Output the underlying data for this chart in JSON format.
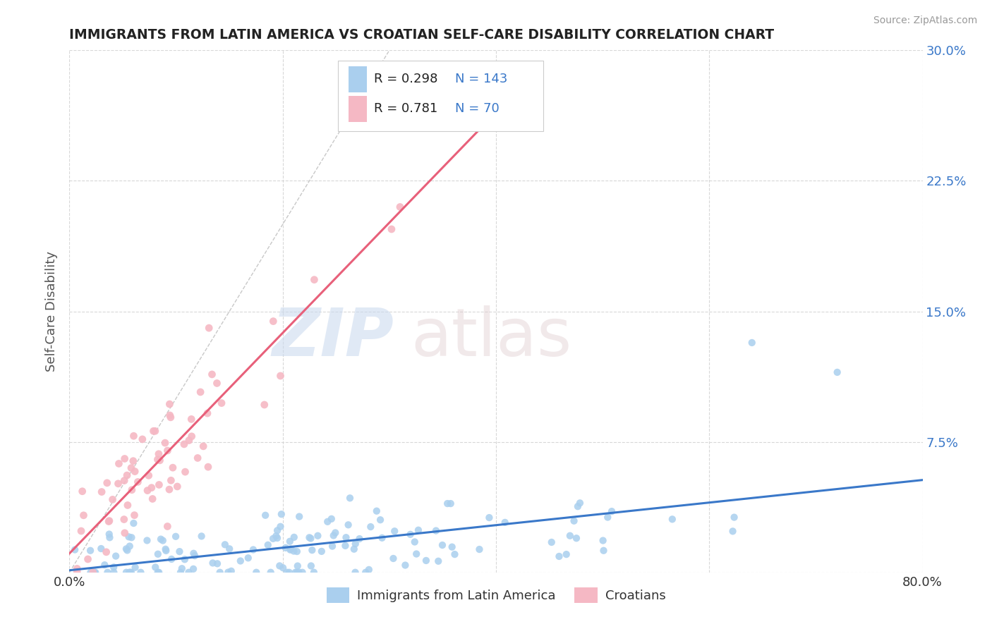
{
  "title": "IMMIGRANTS FROM LATIN AMERICA VS CROATIAN SELF-CARE DISABILITY CORRELATION CHART",
  "source": "Source: ZipAtlas.com",
  "ylabel": "Self-Care Disability",
  "xlim": [
    0.0,
    0.8
  ],
  "ylim": [
    0.0,
    0.3
  ],
  "xticks": [
    0.0,
    0.2,
    0.4,
    0.6,
    0.8
  ],
  "xtick_labels": [
    "0.0%",
    "",
    "",
    "",
    "80.0%"
  ],
  "yticks": [
    0.0,
    0.075,
    0.15,
    0.225,
    0.3
  ],
  "ytick_labels": [
    "",
    "7.5%",
    "15.0%",
    "22.5%",
    "30.0%"
  ],
  "blue_R": 0.298,
  "blue_N": 143,
  "pink_R": 0.781,
  "pink_N": 70,
  "blue_color": "#aacfee",
  "pink_color": "#f5b8c4",
  "blue_line_color": "#3a78c9",
  "pink_line_color": "#e8607a",
  "ref_line_color": "#c8c8c8",
  "background_color": "#ffffff",
  "grid_color": "#d8d8d8",
  "legend_label_blue": "Immigrants from Latin America",
  "legend_label_pink": "Croatians",
  "title_color": "#222222",
  "source_color": "#999999",
  "axis_label_color": "#555555",
  "tick_color_right": "#3a78c9",
  "legend_R_color": "#222222",
  "legend_N_color": "#3a78c9"
}
